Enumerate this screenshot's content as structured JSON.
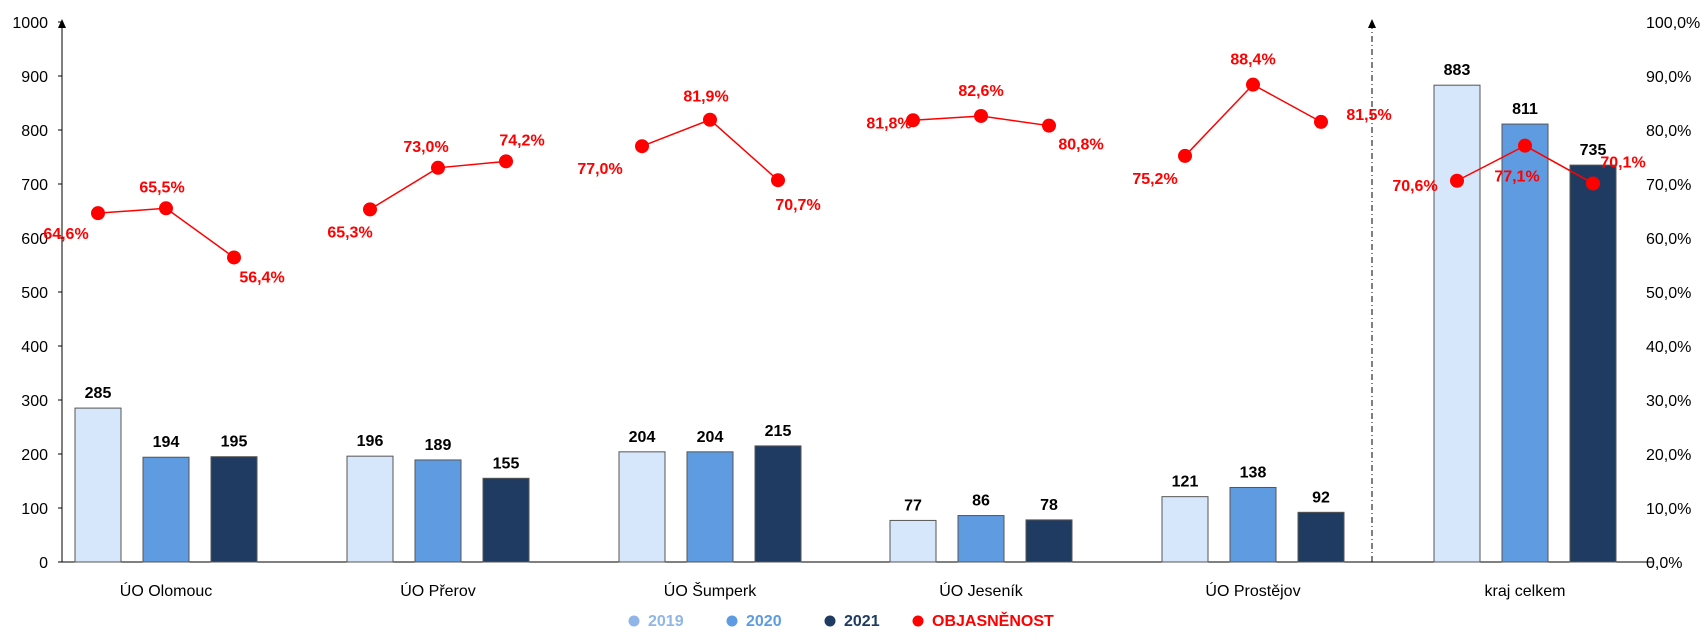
{
  "chart_data": {
    "type": "bar",
    "title": "",
    "xlabel": "",
    "ylabel": "",
    "ylim": [
      0,
      1000
    ],
    "y_ticks": [
      "0",
      "100",
      "200",
      "300",
      "400",
      "500",
      "600",
      "700",
      "800",
      "900",
      "1000"
    ],
    "y2lim": [
      0,
      100
    ],
    "y2_ticks": [
      "0,0%",
      "10,0%",
      "20,0%",
      "30,0%",
      "40,0%",
      "50,0%",
      "60,0%",
      "70,0%",
      "80,0%",
      "90,0%",
      "100,0%"
    ],
    "categories": [
      "ÚO Olomouc",
      "ÚO Přerov",
      "ÚO Šumperk",
      "ÚO Jeseník",
      "ÚO Prostějov",
      "kraj celkem"
    ],
    "series": [
      {
        "name": "2019",
        "color": "#d6e6fb",
        "values": [
          285,
          196,
          204,
          77,
          121,
          883
        ]
      },
      {
        "name": "2020",
        "color": "#5e9be0",
        "values": [
          194,
          189,
          204,
          86,
          138,
          811
        ]
      },
      {
        "name": "2021",
        "color": "#1f3b61",
        "values": [
          195,
          155,
          215,
          78,
          92,
          735
        ]
      }
    ],
    "line_series": {
      "name": "OBJASNĚNOST",
      "color": "#ff0000",
      "axis": "right",
      "values": [
        [
          64.6,
          65.5,
          56.4
        ],
        [
          65.3,
          73.0,
          74.2
        ],
        [
          77.0,
          81.9,
          70.7
        ],
        [
          81.8,
          82.6,
          80.8
        ],
        [
          75.2,
          88.4,
          81.5
        ],
        [
          70.6,
          77.1,
          70.1
        ]
      ],
      "labels": [
        [
          "64,6%",
          "65,5%",
          "56,4%"
        ],
        [
          "65,3%",
          "73,0%",
          "74,2%"
        ],
        [
          "77,0%",
          "81,9%",
          "70,7%"
        ],
        [
          "81,8%",
          "82,6%",
          "80,8%"
        ],
        [
          "75,2%",
          "88,4%",
          "81,5%"
        ],
        [
          "70,6%",
          "77,1%",
          "70,1%"
        ]
      ]
    },
    "separator_before_category": "kraj celkem",
    "legend_position": "bottom-center",
    "grid": false
  }
}
